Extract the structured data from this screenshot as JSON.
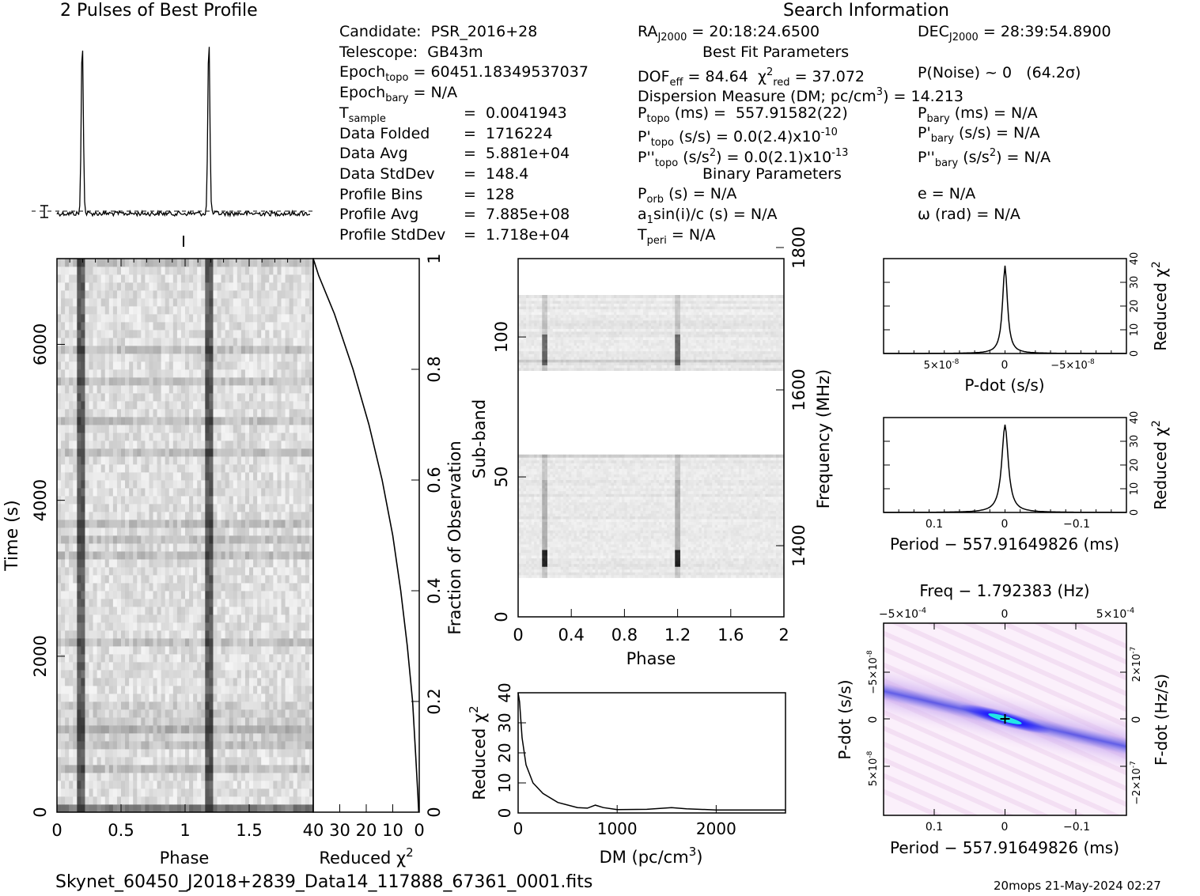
{
  "header": {
    "profile_title": "2 Pulses of Best Profile",
    "search_title": "Search Information",
    "best_fit_title": "Best Fit Parameters",
    "binary_title": "Binary Parameters"
  },
  "info_left": [
    {
      "label": "Candidate:  PSR_2016+28",
      "value": ""
    },
    {
      "label": "Telescope:  GB43m",
      "value": ""
    },
    {
      "label": "Epoch",
      "sub": "topo",
      "value": " = 60451.18349537037"
    },
    {
      "label": "Epoch",
      "sub": "bary",
      "value": " = N/A"
    },
    {
      "label": "T",
      "sub": "sample",
      "value": "=  0.0041943"
    },
    {
      "label": "Data Folded",
      "value": "=  1716224"
    },
    {
      "label": "Data Avg",
      "value": "=  5.881e+04"
    },
    {
      "label": "Data StdDev",
      "value": "=  148.4"
    },
    {
      "label": "Profile Bins",
      "value": "=  128"
    },
    {
      "label": "Profile Avg",
      "value": "=  7.885e+08"
    },
    {
      "label": "Profile StdDev",
      "value": "=  1.718e+04"
    }
  ],
  "info_mid": {
    "ra": "RA",
    "ra_sub": "J2000",
    "ra_val": " = 20:18:24.6500",
    "dof": "DOF",
    "dof_sub": "eff",
    "dof_val": " = 84.64  χ",
    "chi_sup": "2",
    "chi_sub": "red",
    "chi_val": " = 37.072",
    "dm_line": "Dispersion Measure (DM; pc/cm",
    "dm_sup": "3",
    "dm_val": ") = 14.213",
    "ptopo": "P",
    "ptopo_sub": "topo",
    "ptopo_val": " (ms) =  557.91582(22)",
    "pdtopo": "P'",
    "pdtopo_sub": "topo",
    "pdtopo_val": " (s/s) = 0.0(2.4)x10",
    "pdtopo_exp": "-10",
    "pddtopo": "P''",
    "pddtopo_sub": "topo",
    "pddtopo_val": " (s/s",
    "pddtopo_sup": "2",
    "pddtopo_val2": ") = 0.0(2.1)x10",
    "pddtopo_exp": "-13",
    "porb": "P",
    "porb_sub": "orb",
    "porb_val": " (s) = N/A",
    "asini": "a",
    "asini_sub": "1",
    "asini_val": "sin(i)/c (s) = N/A",
    "tperi": "T",
    "tperi_sub": "peri",
    "tperi_val": " = N/A"
  },
  "info_right": {
    "dec": "DEC",
    "dec_sub": "J2000",
    "dec_val": " = 28:39:54.8900",
    "pnoise": "P(Noise) ~ 0   (64.2σ)",
    "pbary": "P",
    "pbary_sub": "bary",
    "pbary_val": " (ms) = N/A",
    "pdbary": "P'",
    "pdbary_sub": "bary",
    "pdbary_val": " (s/s) = N/A",
    "pddbary": "P''",
    "pddbary_sub": "bary",
    "pddbary_val": " (s/s",
    "pddbary_sup": "2",
    "pddbary_val2": ") = N/A",
    "ecc": "e = N/A",
    "omega": "ω (rad) = N/A"
  },
  "footer": {
    "filename": "Skynet_60450_J2018+2839_Data14_117888_67361_0001.fits",
    "stamp": "20mops 21-May-2024 02:27"
  },
  "colors": {
    "ink": "#000000",
    "grey_dark": "#3a3a3a",
    "contour_blue": "#1a1aff",
    "contour_cyan": "#22e6e6",
    "contour_pink": "#f4dcf4"
  },
  "chart_data": [
    {
      "name": "profile",
      "type": "line",
      "x_range": [
        0,
        2
      ],
      "peaks_phase": [
        0.2,
        1.2
      ],
      "baseline_dashed": true
    },
    {
      "name": "time_phase",
      "type": "heatmap",
      "xlabel": "Phase",
      "ylabel": "Time (s)",
      "x_ticks": [
        "0",
        "0.5",
        "1",
        "1.5"
      ],
      "y_ticks": [
        "0",
        "2000",
        "4000",
        "6000"
      ],
      "xlim": [
        0,
        2
      ],
      "ylim": [
        0,
        7100
      ],
      "pulse_phases": [
        0.2,
        1.2
      ]
    },
    {
      "name": "reduced_chi2_vs_fraction",
      "type": "line",
      "xlabel": "Reduced χ",
      "xlabel_sup": "2",
      "x_ticks": [
        "40",
        "30",
        "20",
        "10",
        "0"
      ],
      "ylabel": "Fraction of Observation",
      "y_ticks": [
        "0",
        "0.2",
        "0.4",
        "0.6",
        "0.8",
        "1"
      ],
      "xlim": [
        40,
        0
      ],
      "ylim": [
        0,
        1
      ],
      "points": [
        [
          0.2,
          0
        ],
        [
          0.5,
          0.03
        ],
        [
          1.3,
          0.1
        ],
        [
          2.5,
          0.2
        ],
        [
          4.5,
          0.3
        ],
        [
          7,
          0.4
        ],
        [
          10,
          0.5
        ],
        [
          14,
          0.6
        ],
        [
          19,
          0.7
        ],
        [
          25,
          0.8
        ],
        [
          32,
          0.9
        ],
        [
          38,
          0.97
        ],
        [
          40,
          1
        ]
      ]
    },
    {
      "name": "subband_phase",
      "type": "heatmap",
      "xlabel": "Phase",
      "ylabel": "Sub-band",
      "y2label": "Frequency (MHz)",
      "x_ticks": [
        "0",
        "0.4",
        "0.8",
        "1.2",
        "1.6",
        "2"
      ],
      "y_ticks": [
        "0",
        "50",
        "100"
      ],
      "y2_ticks": [
        "1400",
        "1600",
        "1800"
      ],
      "xlim": [
        0,
        2
      ],
      "ylim": [
        0,
        128
      ],
      "pulse_phases": [
        0.2,
        1.2
      ]
    },
    {
      "name": "dm_curve",
      "type": "line",
      "xlabel": "DM (pc/cm",
      "xlabel_sup": "3",
      "xlabel_end": ")",
      "ylabel": "Reduced χ",
      "ylabel_sup": "2",
      "x_ticks": [
        "0",
        "1000",
        "2000"
      ],
      "y_ticks": [
        "0",
        "10",
        "20",
        "30",
        "40"
      ],
      "xlim": [
        0,
        2700
      ],
      "ylim": [
        0,
        40
      ],
      "points": [
        [
          0,
          40
        ],
        [
          14,
          37
        ],
        [
          40,
          25
        ],
        [
          80,
          16
        ],
        [
          150,
          10
        ],
        [
          250,
          6.5
        ],
        [
          400,
          3.5
        ],
        [
          600,
          1.8
        ],
        [
          700,
          1.6
        ],
        [
          780,
          2.6
        ],
        [
          860,
          1.8
        ],
        [
          1000,
          1.1
        ],
        [
          1300,
          1.2
        ],
        [
          1550,
          1.8
        ],
        [
          1700,
          1.4
        ],
        [
          2000,
          1
        ],
        [
          2700,
          1
        ]
      ]
    },
    {
      "name": "pdot_curve",
      "type": "line",
      "xlabel": "P-dot (s/s)",
      "ylabel": "Reduced χ",
      "ylabel_sup": "2",
      "x_tick_left": "5×10",
      "x_tick_left_exp": "-8",
      "x_tick_mid": "0",
      "x_tick_right": "−5×10",
      "x_tick_right_exp": "-8",
      "y_ticks": [
        "0",
        "10",
        "20",
        "30",
        "40"
      ],
      "ylim": [
        0,
        40
      ],
      "peak": 37
    },
    {
      "name": "period_curve",
      "type": "line",
      "xlabel": "Period − 557.91649826 (ms)",
      "ylabel": "Reduced χ",
      "ylabel_sup": "2",
      "x_ticks": [
        "0.1",
        "0",
        "−0.1"
      ],
      "y_ticks": [
        "0",
        "10",
        "20",
        "30",
        "40"
      ],
      "ylim": [
        0,
        40
      ],
      "peak": 37
    },
    {
      "name": "period_pdot_plane",
      "type": "heatmap",
      "title": "Freq − 1.792383 (Hz)",
      "xlabel": "Period − 557.91649826 (ms)",
      "ylabel": "P-dot (s/s)",
      "y2label": "F-dot (Hz/s)",
      "x_ticks": [
        "0.1",
        "0",
        "−0.1"
      ],
      "top_ticks_left": "−5×10",
      "top_ticks_left_exp": "-4",
      "top_ticks_mid": "0",
      "top_ticks_right": "5×10",
      "top_ticks_right_exp": "-4",
      "y_tick_top": "−5×10",
      "y_tick_top_exp": "-8",
      "y_tick_mid": "0",
      "y_tick_bottom": "5×10",
      "y_tick_bottom_exp": "-8",
      "y2_tick_top": "2×10",
      "y2_tick_top_exp": "-7",
      "y2_tick_mid": "0",
      "y2_tick_bottom": "−2×10",
      "y2_tick_bottom_exp": "-7"
    }
  ]
}
